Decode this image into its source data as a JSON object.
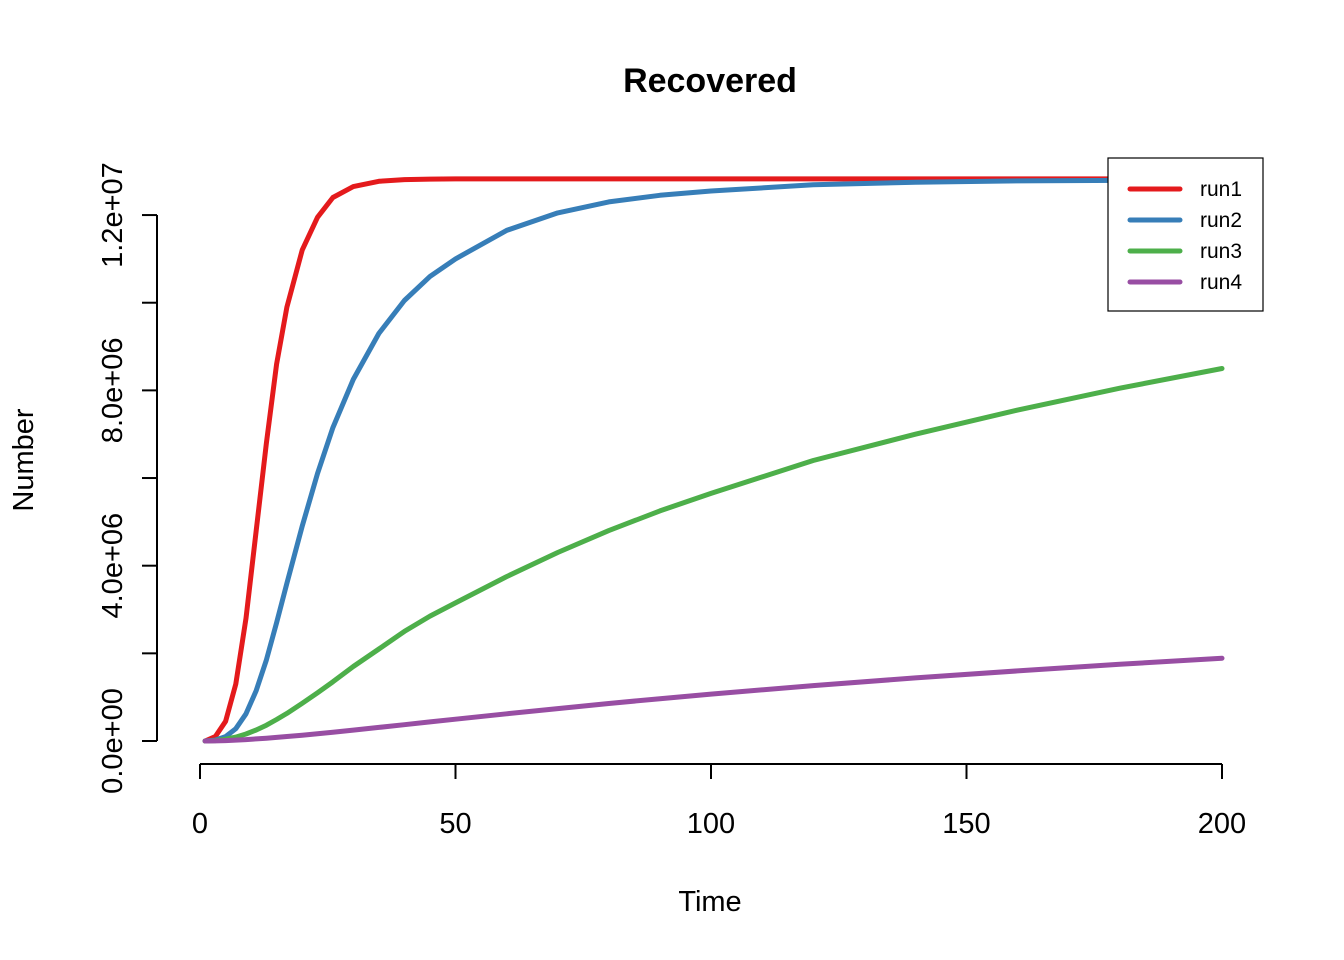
{
  "chart_data": {
    "type": "line",
    "title": "Recovered",
    "xlabel": "Time",
    "ylabel": "Number",
    "xlim": [
      1,
      200
    ],
    "ylim": [
      0,
      12800000
    ],
    "x_ticks": [
      0,
      50,
      100,
      150,
      200
    ],
    "x_tick_labels": [
      "0",
      "50",
      "100",
      "150",
      "200"
    ],
    "y_ticks": [
      0,
      2000000,
      4000000,
      6000000,
      8000000,
      10000000,
      12000000
    ],
    "y_tick_labels": [
      "0.0e+00",
      "",
      "4.0e+06",
      "",
      "8.0e+06",
      "",
      "1.2e+07"
    ],
    "grid": false,
    "legend_position": "top-right",
    "x": [
      1,
      3,
      5,
      7,
      9,
      11,
      13,
      15,
      17,
      20,
      23,
      26,
      30,
      35,
      40,
      45,
      50,
      60,
      70,
      80,
      90,
      100,
      120,
      140,
      160,
      180,
      200
    ],
    "series": [
      {
        "name": "run1",
        "color": "#E41A1C",
        "values": [
          0,
          100000,
          450000,
          1300000,
          2800000,
          4800000,
          6800000,
          8600000,
          9900000,
          11200000,
          11950000,
          12400000,
          12650000,
          12770000,
          12810000,
          12820000,
          12825000,
          12825000,
          12825000,
          12825000,
          12825000,
          12825000,
          12825000,
          12825000,
          12825000,
          12825000,
          12825000
        ]
      },
      {
        "name": "run2",
        "color": "#377EB8",
        "values": [
          0,
          20000,
          100000,
          280000,
          620000,
          1150000,
          1850000,
          2700000,
          3600000,
          4900000,
          6100000,
          7150000,
          8250000,
          9300000,
          10050000,
          10600000,
          11000000,
          11650000,
          12050000,
          12300000,
          12450000,
          12550000,
          12690000,
          12750000,
          12780000,
          12790000,
          12790000
        ]
      },
      {
        "name": "run3",
        "color": "#4DAF4A",
        "values": [
          0,
          10000,
          40000,
          90000,
          160000,
          250000,
          360000,
          490000,
          630000,
          860000,
          1100000,
          1350000,
          1700000,
          2100000,
          2500000,
          2850000,
          3150000,
          3750000,
          4300000,
          4800000,
          5250000,
          5650000,
          6400000,
          7000000,
          7550000,
          8050000,
          8500000
        ]
      },
      {
        "name": "run4",
        "color": "#984EA3",
        "values": [
          0,
          3000,
          10000,
          20000,
          33000,
          48000,
          65000,
          83000,
          102000,
          133000,
          166000,
          200000,
          248000,
          310000,
          372000,
          435000,
          497000,
          620000,
          740000,
          855000,
          965000,
          1070000,
          1265000,
          1440000,
          1600000,
          1750000,
          1890000
        ]
      }
    ]
  }
}
